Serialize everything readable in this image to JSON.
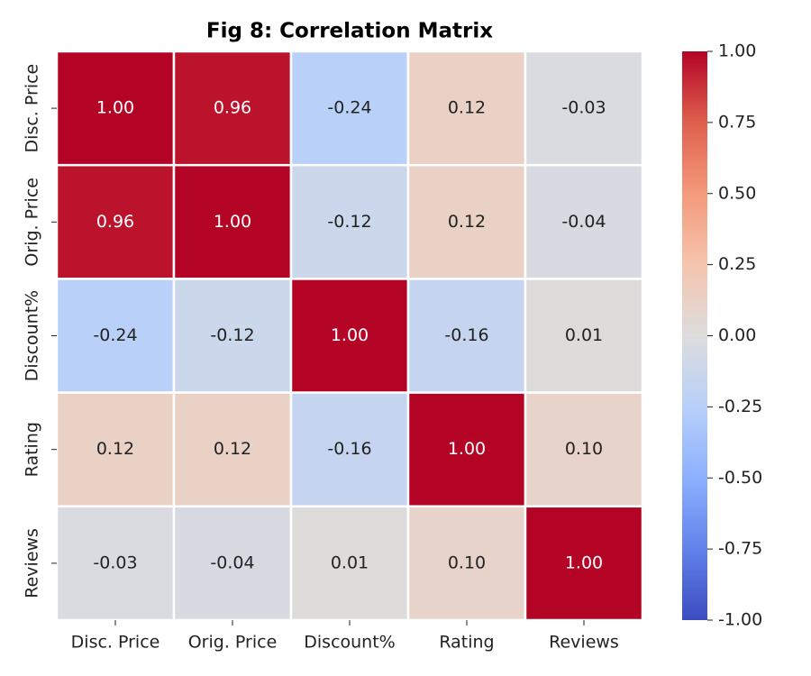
{
  "chart_data": {
    "type": "heatmap",
    "title": "Fig 8: Correlation Matrix",
    "x_categories": [
      "Disc. Price",
      "Orig. Price",
      "Discount%",
      "Rating",
      "Reviews"
    ],
    "y_categories": [
      "Disc. Price",
      "Orig. Price",
      "Discount%",
      "Rating",
      "Reviews"
    ],
    "values": [
      [
        1,
        0.96,
        -0.24,
        0.12,
        -0.03
      ],
      [
        0.96,
        1,
        -0.12,
        0.12,
        -0.04
      ],
      [
        -0.24,
        -0.12,
        1,
        -0.16,
        0.01
      ],
      [
        0.12,
        0.12,
        -0.16,
        1,
        0.1
      ],
      [
        -0.03,
        -0.04,
        0.01,
        0.1,
        1
      ]
    ],
    "value_labels": [
      [
        "1.00",
        "0.96",
        "-0.24",
        "0.12",
        "-0.03"
      ],
      [
        "0.96",
        "1.00",
        "-0.12",
        "0.12",
        "-0.04"
      ],
      [
        "-0.24",
        "-0.12",
        "1.00",
        "-0.16",
        "0.01"
      ],
      [
        "0.12",
        "0.12",
        "-0.16",
        "1.00",
        "0.10"
      ],
      [
        "-0.03",
        "-0.04",
        "0.01",
        "0.10",
        "1.00"
      ]
    ],
    "colormap": "coolwarm",
    "zlim": [
      -1,
      1
    ],
    "zticks": [
      {
        "value": -1,
        "label": "-1.00"
      },
      -0.75,
      {
        "value": -0.5,
        "label": "-0.50"
      },
      -0.25,
      {
        "value": 0,
        "label": "0.00"
      },
      0.25,
      {
        "value": 0.5,
        "label": "0.50"
      },
      0.75,
      {
        "value": 1,
        "label": "1.00"
      }
    ]
  }
}
